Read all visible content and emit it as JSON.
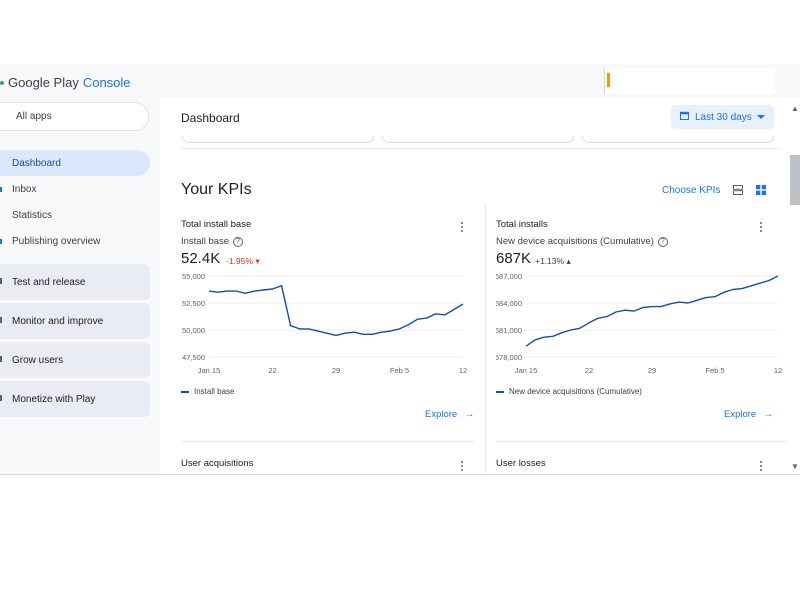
{
  "app": {
    "logo_main": "Google Play",
    "logo_accent": "Console"
  },
  "sidebar": {
    "all_apps": "All apps",
    "items": [
      {
        "label": "Dashboard",
        "active": true
      },
      {
        "label": "Inbox"
      },
      {
        "label": "Statistics"
      },
      {
        "label": "Publishing overview"
      }
    ],
    "groups": [
      {
        "label": "Test and release"
      },
      {
        "label": "Monitor and improve"
      },
      {
        "label": "Grow users"
      },
      {
        "label": "Monetize with Play"
      }
    ]
  },
  "header": {
    "title": "Dashboard",
    "date_range": "Last 30 days"
  },
  "kpis": {
    "title": "Your KPIs",
    "choose_label": "Choose KPIs",
    "cards": [
      {
        "title": "Total install base",
        "metric": "Install base",
        "value": "52.4K",
        "change": "-1.95%",
        "change_direction": "down",
        "legend": "Install base",
        "explore": "Explore"
      },
      {
        "title": "Total installs",
        "metric": "New device acquisitions (Cumulative)",
        "value": "687K",
        "change": "+1.13%",
        "change_direction": "up",
        "legend": "New device acquisitions (Cumulative)",
        "explore": "Explore"
      }
    ],
    "next_cards": [
      {
        "title": "User acquisitions"
      },
      {
        "title": "User losses"
      }
    ]
  },
  "colors": {
    "accent": "#1a73e8",
    "line": "#174ea6",
    "negative": "#d93025",
    "active_nav": "#dbe7fb"
  },
  "chart_data": [
    {
      "type": "line",
      "x": [
        "Jan 15",
        "Jan 16",
        "Jan 17",
        "Jan 18",
        "Jan 19",
        "Jan 20",
        "Jan 21",
        "Jan 22",
        "Jan 23",
        "Jan 24",
        "Jan 25",
        "Jan 26",
        "Jan 27",
        "Jan 28",
        "Jan 29",
        "Jan 30",
        "Jan 31",
        "Feb 1",
        "Feb 2",
        "Feb 3",
        "Feb 4",
        "Feb 5",
        "Feb 6",
        "Feb 7",
        "Feb 8",
        "Feb 9",
        "Feb 10",
        "Feb 11",
        "Feb 12"
      ],
      "series": [
        {
          "name": "Install base",
          "values": [
            53600,
            53500,
            53600,
            53600,
            53400,
            53600,
            53700,
            53800,
            54100,
            50400,
            50100,
            50100,
            49900,
            49700,
            49500,
            49700,
            49800,
            49600,
            49600,
            49800,
            49900,
            50100,
            50500,
            51000,
            51100,
            51500,
            51400,
            51900,
            52400
          ]
        }
      ],
      "xticks": [
        "Jan 15",
        "22",
        "29",
        "Feb 5",
        "12"
      ],
      "yticks": [
        "47,500",
        "50,000",
        "52,500",
        "55,000"
      ],
      "ylim": [
        47500,
        55000
      ]
    },
    {
      "type": "line",
      "x": [
        "Jan 15",
        "Jan 16",
        "Jan 17",
        "Jan 18",
        "Jan 19",
        "Jan 20",
        "Jan 21",
        "Jan 22",
        "Jan 23",
        "Jan 24",
        "Jan 25",
        "Jan 26",
        "Jan 27",
        "Jan 28",
        "Jan 29",
        "Jan 30",
        "Jan 31",
        "Feb 1",
        "Feb 2",
        "Feb 3",
        "Feb 4",
        "Feb 5",
        "Feb 6",
        "Feb 7",
        "Feb 8",
        "Feb 9",
        "Feb 10",
        "Feb 11",
        "Feb 12"
      ],
      "series": [
        {
          "name": "New device acquisitions (Cumulative)",
          "values": [
            679200,
            679900,
            680200,
            680300,
            680700,
            681000,
            681200,
            681800,
            682300,
            682500,
            683000,
            683200,
            683100,
            683500,
            683600,
            683600,
            683900,
            684100,
            684000,
            684300,
            684600,
            684700,
            685200,
            685500,
            685600,
            685900,
            686200,
            686500,
            687000
          ]
        }
      ],
      "xticks": [
        "Jan 15",
        "22",
        "29",
        "Feb 5",
        "12"
      ],
      "yticks": [
        "678,000",
        "681,000",
        "684,000",
        "687,000"
      ],
      "ylim": [
        678000,
        687000
      ]
    }
  ]
}
